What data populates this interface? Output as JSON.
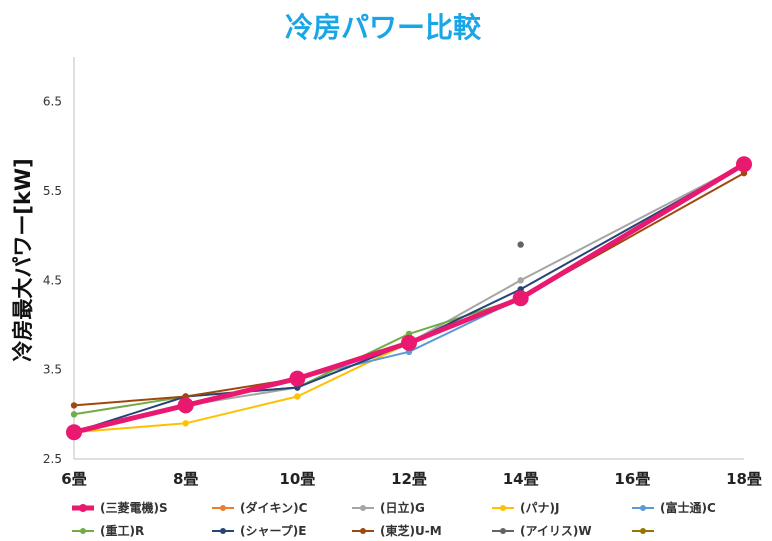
{
  "chart_data": {
    "type": "line",
    "title": "冷房パワー比較",
    "ylabel": "冷房最大パワー[kW]",
    "xlabel": "",
    "categories": [
      "6畳",
      "8畳",
      "10畳",
      "12畳",
      "14畳",
      "16畳",
      "18畳"
    ],
    "x": [
      6,
      8,
      10,
      12,
      14,
      16,
      18
    ],
    "ylim": [
      2.5,
      7.0
    ],
    "yticks": [
      "2.5",
      "3.5",
      "4.5",
      "5.5",
      "6.5"
    ],
    "ytick_values": [
      2.5,
      3.5,
      4.5,
      5.5,
      6.5
    ],
    "grid": false,
    "legend_position": "bottom",
    "series": [
      {
        "name": "(三菱電機)S",
        "color": "#e8196e",
        "emphasis": true,
        "points": [
          [
            6,
            2.8
          ],
          [
            8,
            3.1
          ],
          [
            10,
            3.4
          ],
          [
            12,
            3.8
          ],
          [
            14,
            4.3
          ],
          [
            18,
            5.8
          ]
        ]
      },
      {
        "name": "(ダイキン)C",
        "color": "#ed7d31",
        "points": [
          [
            6,
            2.8
          ],
          [
            8,
            3.1
          ],
          [
            10,
            3.4
          ],
          [
            12,
            3.8
          ],
          [
            14,
            4.3
          ],
          [
            18,
            5.8
          ]
        ]
      },
      {
        "name": "(日立)G",
        "color": "#a5a5a5",
        "points": [
          [
            6,
            2.8
          ],
          [
            8,
            3.1
          ],
          [
            10,
            3.3
          ],
          [
            12,
            3.8
          ],
          [
            14,
            4.5
          ],
          [
            18,
            5.8
          ]
        ]
      },
      {
        "name": "(パナ)J",
        "color": "#ffc000",
        "points": [
          [
            6,
            2.8
          ],
          [
            8,
            2.9
          ],
          [
            10,
            3.2
          ],
          [
            12,
            3.8
          ],
          [
            14,
            4.3
          ],
          [
            18,
            5.8
          ]
        ]
      },
      {
        "name": "(富士通)C",
        "color": "#5b9bd5",
        "points": [
          [
            6,
            2.8
          ],
          [
            8,
            3.1
          ],
          [
            10,
            3.4
          ],
          [
            12,
            3.7
          ],
          [
            14,
            4.3
          ],
          [
            18,
            5.8
          ]
        ]
      },
      {
        "name": "(重工)R",
        "color": "#70ad47",
        "points": [
          [
            6,
            3.0
          ],
          [
            8,
            3.2
          ],
          [
            10,
            3.3
          ],
          [
            12,
            3.9
          ],
          [
            14,
            4.3
          ],
          [
            18,
            5.8
          ]
        ]
      },
      {
        "name": "(シャープ)E",
        "color": "#264478",
        "points": [
          [
            6,
            2.8
          ],
          [
            8,
            3.2
          ],
          [
            10,
            3.3
          ],
          [
            12,
            3.8
          ],
          [
            14,
            4.4
          ],
          [
            18,
            5.8
          ]
        ]
      },
      {
        "name": "(東芝)U-M",
        "color": "#9e480e",
        "points": [
          [
            6,
            3.1
          ],
          [
            8,
            3.2
          ],
          [
            10,
            3.4
          ],
          [
            12,
            3.8
          ],
          [
            14,
            4.3
          ],
          [
            18,
            5.7
          ]
        ]
      },
      {
        "name": "(アイリス)W",
        "color": "#636363",
        "points": [
          [
            14,
            4.9
          ]
        ]
      },
      {
        "name": "",
        "color": "#997300",
        "points": []
      }
    ]
  }
}
